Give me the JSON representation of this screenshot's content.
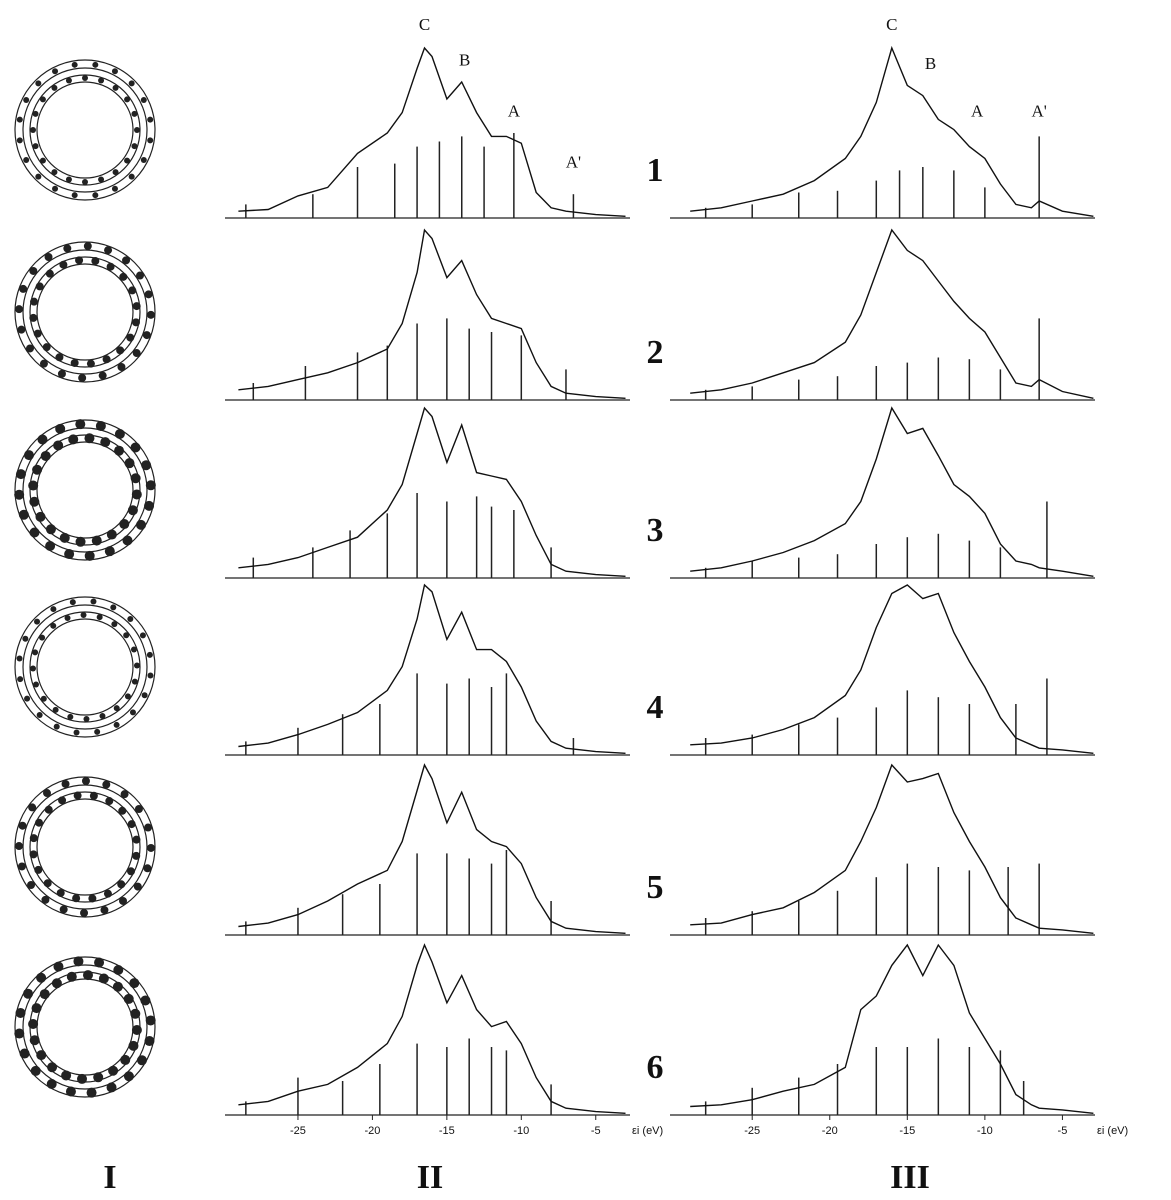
{
  "figure": {
    "column_labels": [
      "I",
      "II",
      "III"
    ],
    "row_labels": [
      "1",
      "2",
      "3",
      "4",
      "5",
      "6"
    ]
  },
  "chart_data": [
    {
      "type": "line",
      "xlim": [
        -29.9,
        -2.7
      ],
      "ylim": [
        0,
        100
      ],
      "x": [
        -29,
        -27,
        -25,
        -23,
        -21,
        -19,
        -18,
        -17,
        -16.5,
        -16,
        -15,
        -14,
        -13,
        -12,
        -11,
        -10,
        -9,
        -8,
        -7,
        -5,
        -3
      ],
      "values": [
        4,
        5,
        13,
        18,
        38,
        50,
        62,
        88,
        100,
        95,
        70,
        80,
        62,
        48,
        48,
        44,
        15,
        6,
        4,
        2,
        1
      ],
      "stick_x": [
        -28.5,
        -24,
        -21,
        -18.5,
        -17,
        -15.5,
        -14,
        -12.5,
        -10.5,
        -6.5
      ],
      "stick_values": [
        8,
        14,
        30,
        32,
        42,
        45,
        48,
        42,
        50,
        14
      ],
      "annotations": [
        {
          "text": "C",
          "x": -16.5,
          "y": 113
        },
        {
          "text": "B",
          "x": -13.8,
          "y": 92
        },
        {
          "text": "A",
          "x": -10.5,
          "y": 62
        },
        {
          "text": "A'",
          "x": -6.5,
          "y": 32
        }
      ]
    },
    {
      "type": "line",
      "xlim": [
        -29.9,
        -2.7
      ],
      "ylim": [
        0,
        100
      ],
      "x": [
        -29,
        -27,
        -25,
        -23,
        -21,
        -19,
        -18,
        -17,
        -16.5,
        -16,
        -15,
        -14,
        -13,
        -12,
        -11,
        -10,
        -9,
        -8,
        -7,
        -5,
        -3
      ],
      "values": [
        6,
        8,
        12,
        16,
        22,
        30,
        45,
        75,
        100,
        95,
        72,
        82,
        62,
        48,
        45,
        42,
        22,
        8,
        4,
        2,
        1
      ],
      "stick_x": [
        -28,
        -24.5,
        -21,
        -19,
        -17,
        -15,
        -13.5,
        -12,
        -10,
        -7
      ],
      "stick_values": [
        10,
        20,
        28,
        32,
        45,
        48,
        42,
        40,
        38,
        18
      ]
    },
    {
      "type": "line",
      "xlim": [
        -29.9,
        -2.7
      ],
      "ylim": [
        0,
        100
      ],
      "x": [
        -29,
        -27,
        -25,
        -23,
        -21,
        -19,
        -18,
        -17,
        -16.5,
        -16,
        -15,
        -14,
        -13,
        -12,
        -11,
        -10,
        -9,
        -8,
        -7,
        -5,
        -3
      ],
      "values": [
        6,
        8,
        12,
        18,
        24,
        40,
        55,
        85,
        100,
        95,
        68,
        90,
        62,
        60,
        58,
        45,
        25,
        8,
        4,
        2,
        1
      ],
      "stick_x": [
        -28,
        -24,
        -21.5,
        -19,
        -17,
        -15,
        -13,
        -12,
        -10.5,
        -8
      ],
      "stick_values": [
        12,
        18,
        28,
        38,
        50,
        45,
        48,
        42,
        40,
        18
      ]
    },
    {
      "type": "line",
      "xlim": [
        -29.9,
        -2.7
      ],
      "ylim": [
        0,
        100
      ],
      "x": [
        -29,
        -27,
        -25,
        -23,
        -21,
        -19,
        -18,
        -17,
        -16.5,
        -16,
        -15,
        -14,
        -13,
        -12,
        -11,
        -10,
        -9,
        -8,
        -7,
        -5,
        -3
      ],
      "values": [
        5,
        7,
        12,
        18,
        25,
        38,
        52,
        80,
        100,
        96,
        68,
        84,
        62,
        62,
        55,
        40,
        20,
        8,
        4,
        2,
        1
      ],
      "stick_x": [
        -28.5,
        -25,
        -22,
        -19.5,
        -17,
        -15,
        -13.5,
        -12,
        -11,
        -6.5
      ],
      "stick_values": [
        8,
        16,
        24,
        30,
        48,
        42,
        45,
        40,
        48,
        10
      ]
    },
    {
      "type": "line",
      "xlim": [
        -29.9,
        -2.7
      ],
      "ylim": [
        0,
        100
      ],
      "x": [
        -29,
        -27,
        -25,
        -23,
        -21,
        -19,
        -18,
        -17,
        -16.5,
        -16,
        -15,
        -14,
        -13,
        -12,
        -11,
        -10,
        -9,
        -8,
        -7,
        -5,
        -3
      ],
      "values": [
        5,
        7,
        12,
        20,
        30,
        38,
        55,
        85,
        100,
        92,
        66,
        84,
        62,
        55,
        52,
        42,
        22,
        8,
        4,
        2,
        1
      ],
      "stick_x": [
        -28.5,
        -25,
        -22,
        -19.5,
        -17,
        -15,
        -13.5,
        -12,
        -11,
        -8
      ],
      "stick_values": [
        8,
        16,
        24,
        30,
        48,
        48,
        45,
        42,
        50,
        20
      ]
    },
    {
      "type": "line",
      "xlim": [
        -29.9,
        -2.7
      ],
      "ylim": [
        0,
        100
      ],
      "x": [
        -29,
        -27,
        -25,
        -23,
        -21,
        -19,
        -18,
        -17,
        -16.5,
        -16,
        -15,
        -14,
        -13,
        -12,
        -11,
        -10,
        -9,
        -8,
        -7,
        -5,
        -3
      ],
      "values": [
        6,
        8,
        14,
        18,
        28,
        42,
        58,
        88,
        100,
        90,
        66,
        82,
        62,
        52,
        55,
        42,
        22,
        8,
        4,
        2,
        1
      ],
      "stick_x": [
        -28.5,
        -25,
        -22,
        -19.5,
        -17,
        -15,
        -13.5,
        -12,
        -11,
        -8
      ],
      "stick_values": [
        8,
        22,
        20,
        30,
        42,
        40,
        45,
        40,
        38,
        18
      ],
      "xticks": [
        -25,
        -20,
        -15,
        -10,
        -5
      ],
      "xlabel": "εi (eV)"
    },
    {
      "type": "line",
      "xlim": [
        -30.3,
        -2.9
      ],
      "ylim": [
        0,
        100
      ],
      "x": [
        -29,
        -27,
        -25,
        -23,
        -21,
        -19,
        -18,
        -17,
        -16,
        -15,
        -14,
        -13,
        -12,
        -11,
        -10,
        -9,
        -8,
        -7,
        -6.5,
        -5,
        -3
      ],
      "values": [
        4,
        6,
        10,
        14,
        22,
        35,
        48,
        68,
        100,
        78,
        72,
        58,
        52,
        42,
        35,
        20,
        8,
        6,
        10,
        4,
        1
      ],
      "stick_x": [
        -28,
        -25,
        -22,
        -19.5,
        -17,
        -15.5,
        -14,
        -12,
        -10,
        -6.5
      ],
      "stick_values": [
        6,
        8,
        15,
        16,
        22,
        28,
        30,
        28,
        18,
        48
      ],
      "annotations": [
        {
          "text": "C",
          "x": -16,
          "y": 113
        },
        {
          "text": "B",
          "x": -13.5,
          "y": 90
        },
        {
          "text": "A",
          "x": -10.5,
          "y": 62
        },
        {
          "text": "A'",
          "x": -6.5,
          "y": 62
        }
      ]
    },
    {
      "type": "line",
      "xlim": [
        -30.3,
        -2.9
      ],
      "ylim": [
        0,
        100
      ],
      "x": [
        -29,
        -27,
        -25,
        -23,
        -21,
        -19,
        -18,
        -17,
        -16,
        -15,
        -14,
        -13,
        -12,
        -11,
        -10,
        -9,
        -8,
        -7,
        -6.5,
        -5,
        -3
      ],
      "values": [
        4,
        6,
        10,
        16,
        22,
        34,
        50,
        75,
        100,
        88,
        82,
        70,
        58,
        48,
        40,
        25,
        10,
        8,
        12,
        5,
        1
      ],
      "stick_x": [
        -28,
        -25,
        -22,
        -19.5,
        -17,
        -15,
        -13,
        -11,
        -9,
        -6.5
      ],
      "stick_values": [
        6,
        8,
        12,
        14,
        20,
        22,
        25,
        24,
        18,
        48
      ]
    },
    {
      "type": "line",
      "xlim": [
        -30.3,
        -2.9
      ],
      "ylim": [
        0,
        100
      ],
      "x": [
        -29,
        -27,
        -25,
        -23,
        -21,
        -19,
        -18,
        -17,
        -16,
        -15,
        -14,
        -13,
        -12,
        -11,
        -10,
        -9,
        -8,
        -7,
        -6.5,
        -5,
        -3
      ],
      "values": [
        4,
        6,
        10,
        15,
        22,
        32,
        45,
        70,
        100,
        85,
        88,
        72,
        55,
        48,
        38,
        20,
        10,
        8,
        6,
        4,
        1
      ],
      "stick_x": [
        -28,
        -25,
        -22,
        -19.5,
        -17,
        -15,
        -13,
        -11,
        -9,
        -6
      ],
      "stick_values": [
        6,
        10,
        12,
        14,
        20,
        24,
        26,
        22,
        18,
        45
      ]
    },
    {
      "type": "line",
      "xlim": [
        -30.3,
        -2.9
      ],
      "ylim": [
        0,
        100
      ],
      "x": [
        -29,
        -27,
        -25,
        -23,
        -21,
        -19,
        -18,
        -17,
        -16,
        -15,
        -14,
        -13,
        -12,
        -11,
        -10,
        -9,
        -8,
        -7,
        -6.5,
        -5,
        -3
      ],
      "values": [
        6,
        7,
        10,
        15,
        22,
        35,
        50,
        75,
        95,
        100,
        92,
        95,
        72,
        55,
        40,
        22,
        10,
        6,
        4,
        3,
        1
      ],
      "stick_x": [
        -28,
        -25,
        -22,
        -19.5,
        -17,
        -15,
        -13,
        -11,
        -8,
        -6
      ],
      "stick_values": [
        10,
        12,
        18,
        22,
        28,
        38,
        34,
        30,
        30,
        45
      ]
    },
    {
      "type": "line",
      "xlim": [
        -30.3,
        -2.9
      ],
      "ylim": [
        0,
        100
      ],
      "x": [
        -29,
        -27,
        -25,
        -23,
        -21,
        -19,
        -18,
        -17,
        -16,
        -15,
        -14,
        -13,
        -12,
        -11,
        -10,
        -9,
        -8,
        -7,
        -6.5,
        -5,
        -3
      ],
      "values": [
        6,
        7,
        12,
        16,
        25,
        38,
        55,
        75,
        100,
        90,
        92,
        95,
        72,
        55,
        40,
        22,
        10,
        6,
        4,
        3,
        1
      ],
      "stick_x": [
        -28,
        -25,
        -22,
        -19.5,
        -17,
        -15,
        -13,
        -11,
        -8.5,
        -6.5
      ],
      "stick_values": [
        10,
        14,
        20,
        26,
        34,
        42,
        40,
        38,
        40,
        42
      ]
    },
    {
      "type": "line",
      "xlim": [
        -30.3,
        -2.9
      ],
      "ylim": [
        0,
        100
      ],
      "x": [
        -29,
        -27,
        -25,
        -23,
        -21,
        -19,
        -18,
        -17,
        -16,
        -15,
        -14,
        -13,
        -12,
        -11,
        -10,
        -9,
        -8,
        -7,
        -6.5,
        -5,
        -3
      ],
      "values": [
        5,
        6,
        9,
        14,
        18,
        28,
        62,
        70,
        88,
        100,
        82,
        100,
        88,
        60,
        45,
        30,
        12,
        6,
        4,
        3,
        1
      ],
      "stick_x": [
        -28,
        -25,
        -22,
        -19.5,
        -17,
        -15,
        -13,
        -11,
        -9,
        -7.5
      ],
      "stick_values": [
        8,
        16,
        22,
        30,
        40,
        40,
        45,
        40,
        38,
        20
      ],
      "xticks": [
        -25,
        -20,
        -15,
        -10,
        -5
      ],
      "xlabel": "εi (eV)"
    }
  ]
}
